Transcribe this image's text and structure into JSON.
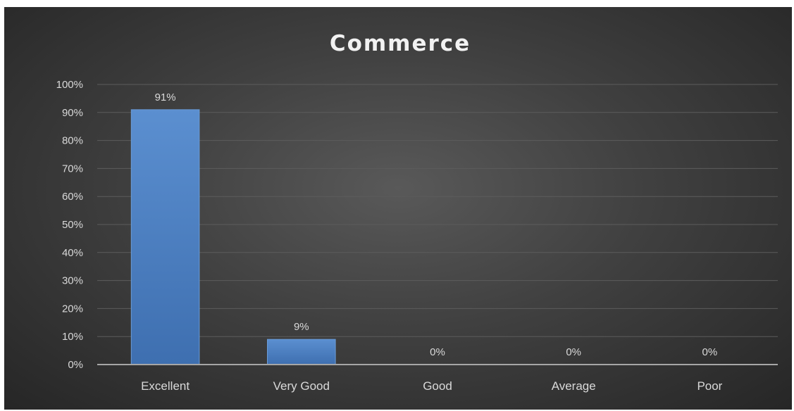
{
  "chart_data": {
    "type": "bar",
    "title": "Commerce",
    "categories": [
      "Excellent",
      "Very Good",
      "Good",
      "Average",
      "Poor"
    ],
    "values": [
      91,
      9,
      0,
      0,
      0
    ],
    "data_labels": [
      "91%",
      "9%",
      "0%",
      "0%",
      "0%"
    ],
    "ylim": [
      0,
      100
    ],
    "yticks": [
      0,
      10,
      20,
      30,
      40,
      50,
      60,
      70,
      80,
      90,
      100
    ],
    "ytick_labels": [
      "0%",
      "10%",
      "20%",
      "30%",
      "40%",
      "50%",
      "60%",
      "70%",
      "80%",
      "90%",
      "100%"
    ],
    "grid": true,
    "legend": "none",
    "colors": {
      "bar": "#4f81bd",
      "background": "#404040",
      "text": "#d9d9d9"
    }
  }
}
